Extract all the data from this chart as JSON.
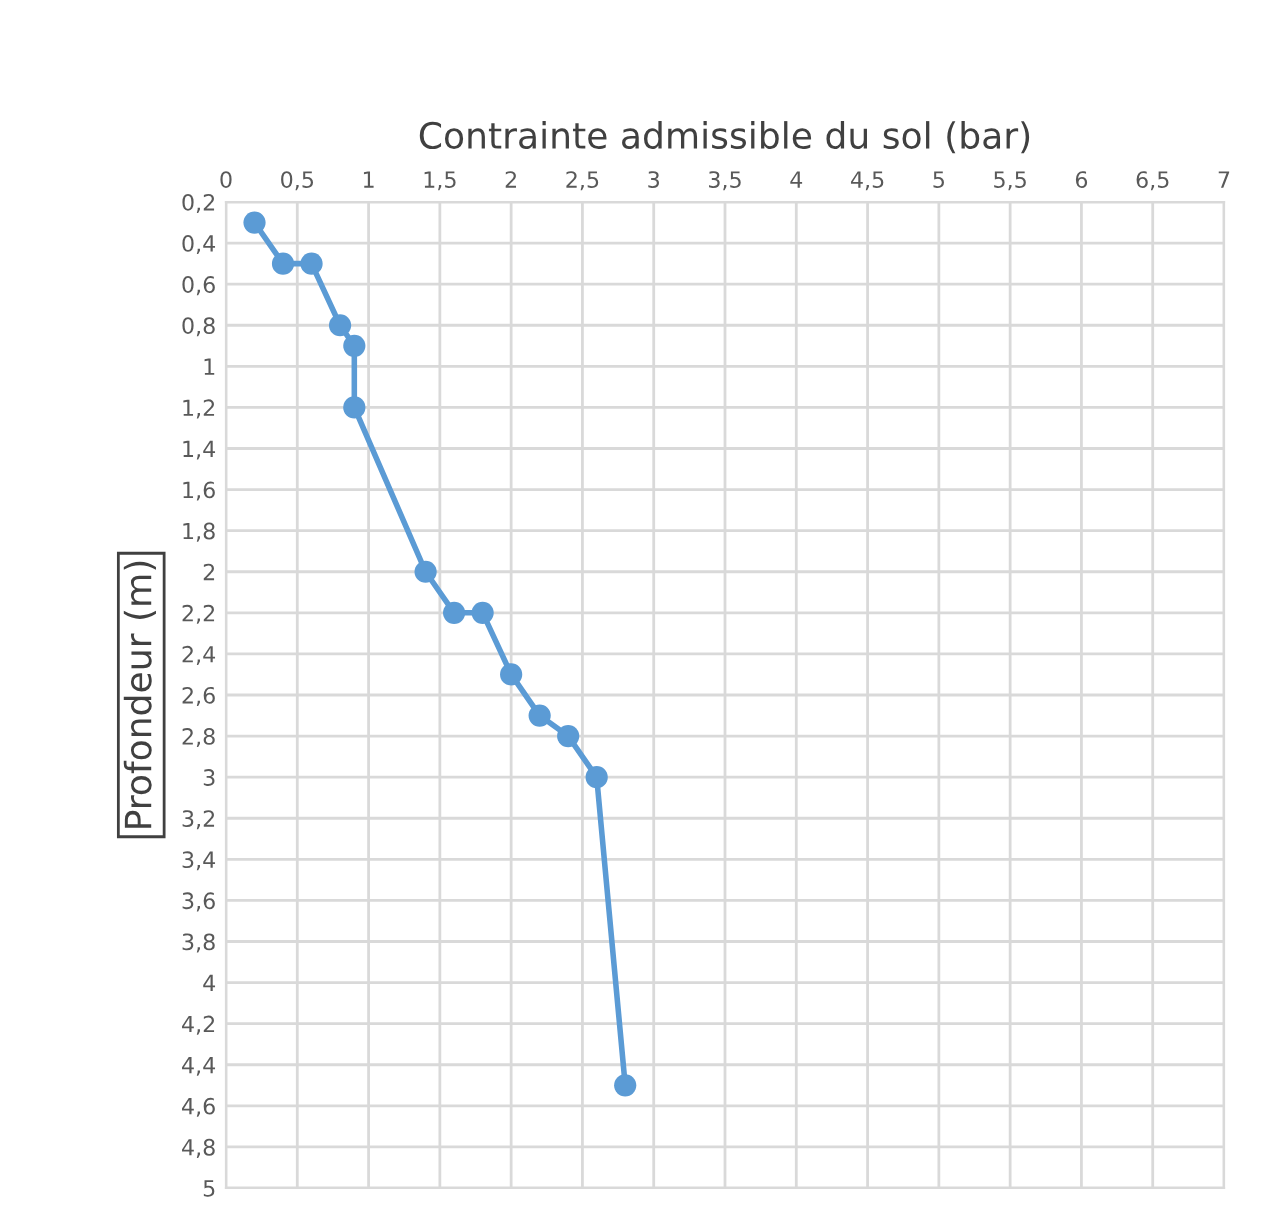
{
  "chart_data": {
    "type": "line",
    "xlabel": "Contrainte admissible du sol (bar)",
    "ylabel": "Profondeur (m)",
    "series": [
      {
        "color": "#5b9bd5",
        "x": [
          0.2,
          0.4,
          0.6,
          0.8,
          0.9,
          0.9,
          1.4,
          1.6,
          1.8,
          2.0,
          2.2,
          2.4,
          2.6,
          2.8
        ],
        "values": [
          0.3,
          0.5,
          0.5,
          0.8,
          0.9,
          1.2,
          2.0,
          2.2,
          2.2,
          2.5,
          2.7,
          2.8,
          3.0,
          4.5
        ]
      }
    ],
    "xlim": [
      0,
      7
    ],
    "ylim": [
      5,
      0.2
    ],
    "xticks": [
      0,
      {
        "value": 0.5,
        "label": "0,5"
      },
      1,
      {
        "value": 1.5,
        "label": "1,5"
      },
      2,
      {
        "value": 2.5,
        "label": "2,5"
      },
      3,
      {
        "value": 3.5,
        "label": "3,5"
      },
      4,
      {
        "value": 4.5,
        "label": "4,5"
      },
      5,
      {
        "value": 5.5,
        "label": "5,5"
      },
      6,
      {
        "value": 6.5,
        "label": "6,5"
      },
      7
    ],
    "yticks": [
      {
        "value": 0.2,
        "label": "0,2"
      },
      {
        "value": 0.4,
        "label": "0,4"
      },
      {
        "value": 0.6,
        "label": "0,6"
      },
      {
        "value": 0.8,
        "label": "0,8"
      },
      1,
      {
        "value": 1.2,
        "label": "1,2"
      },
      {
        "value": 1.4,
        "label": "1,4"
      },
      {
        "value": 1.6,
        "label": "1,6"
      },
      {
        "value": 1.8,
        "label": "1,8"
      },
      2,
      {
        "value": 2.2,
        "label": "2,2"
      },
      {
        "value": 2.4,
        "label": "2,4"
      },
      {
        "value": 2.6,
        "label": "2,6"
      },
      {
        "value": 2.8,
        "label": "2,8"
      },
      3,
      {
        "value": 3.2,
        "label": "3,2"
      },
      {
        "value": 3.4,
        "label": "3,4"
      },
      {
        "value": 3.6,
        "label": "3,6"
      },
      {
        "value": 3.8,
        "label": "3,8"
      },
      4,
      {
        "value": 4.2,
        "label": "4,2"
      },
      {
        "value": 4.4,
        "label": "4,4"
      },
      {
        "value": 4.6,
        "label": "4,6"
      },
      {
        "value": 4.8,
        "label": "4,8"
      },
      5
    ],
    "grid": true,
    "marker": "circle",
    "line_style": "solid"
  }
}
